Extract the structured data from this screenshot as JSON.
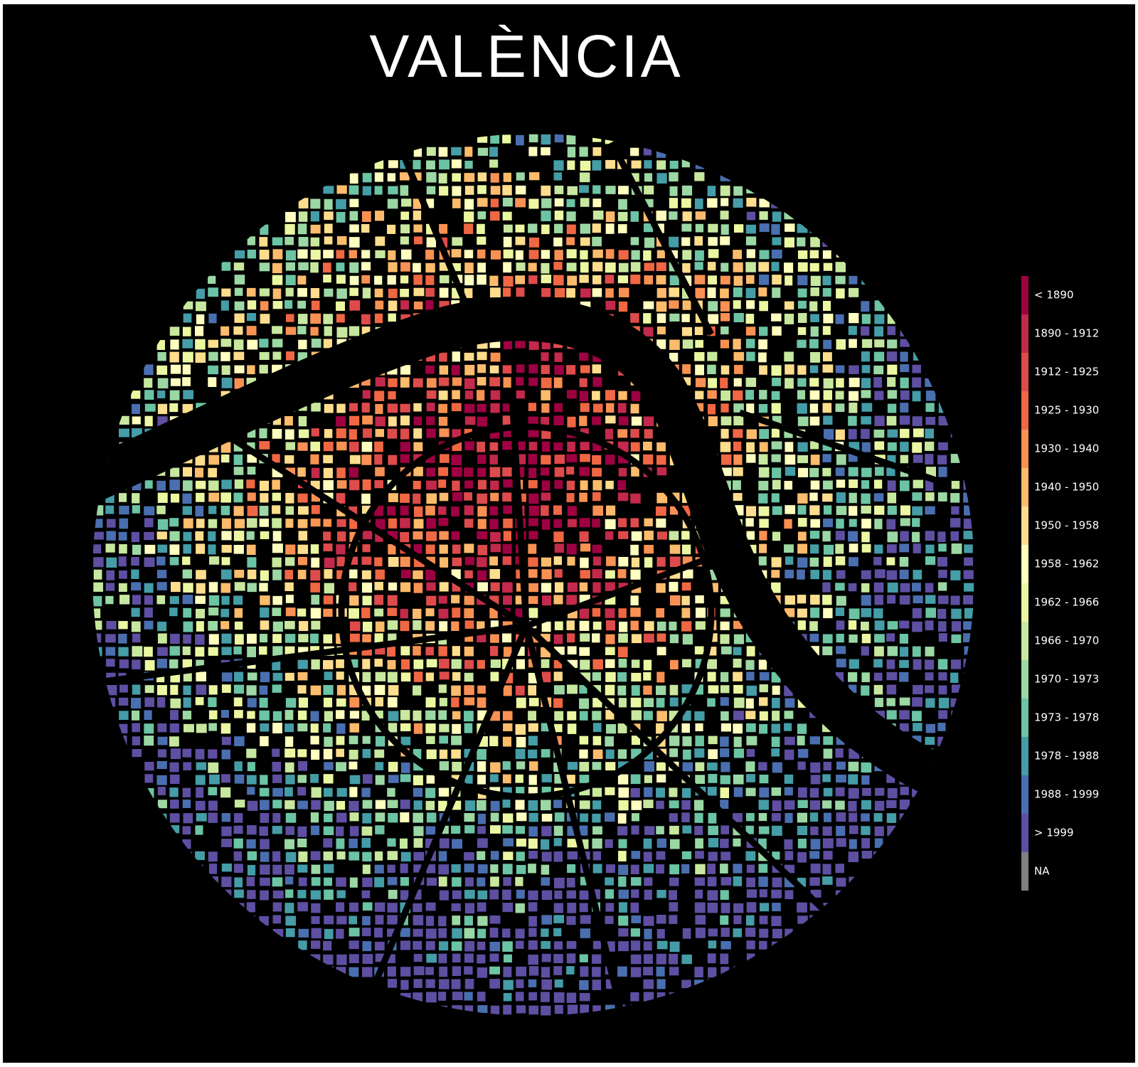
{
  "title": "VALÈNCIA",
  "legend": {
    "items": [
      {
        "label": "< 1890",
        "color": "#9e0142"
      },
      {
        "label": "1890 - 1912",
        "color": "#c2294a"
      },
      {
        "label": "1912 - 1925",
        "color": "#de4b4b"
      },
      {
        "label": "1925 - 1930",
        "color": "#f06744"
      },
      {
        "label": "1930 - 1940",
        "color": "#f99153"
      },
      {
        "label": "1940 - 1950",
        "color": "#fdbb6c"
      },
      {
        "label": "1950 - 1958",
        "color": "#fedd8d"
      },
      {
        "label": "1958 - 1962",
        "color": "#fffebe"
      },
      {
        "label": "1962 - 1966",
        "color": "#ecf7a1"
      },
      {
        "label": "1966 - 1970",
        "color": "#c7e89e"
      },
      {
        "label": "1970 - 1973",
        "color": "#9bd8a4"
      },
      {
        "label": "1973 - 1978",
        "color": "#6bc4a4"
      },
      {
        "label": "1978 - 1988",
        "color": "#449da7"
      },
      {
        "label": "1988 - 1999",
        "color": "#4a6fb0"
      },
      {
        "label": "> 1999",
        "color": "#5e4fa2"
      },
      {
        "label": "NA",
        "color": "#808080"
      }
    ]
  }
}
